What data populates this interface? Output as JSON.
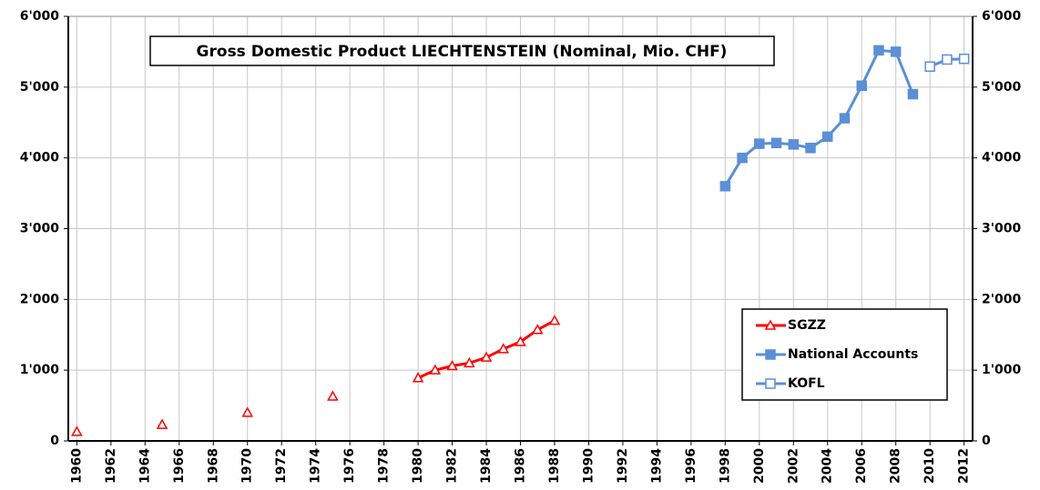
{
  "chart_data": {
    "type": "line",
    "title": "Gross Domestic Product LIECHTENSTEIN (Nominal, Mio. CHF)",
    "x": [
      1960,
      1961,
      1962,
      1963,
      1964,
      1965,
      1966,
      1967,
      1968,
      1969,
      1970,
      1971,
      1972,
      1973,
      1974,
      1975,
      1976,
      1977,
      1978,
      1979,
      1980,
      1981,
      1982,
      1983,
      1984,
      1985,
      1986,
      1987,
      1988,
      1989,
      1990,
      1991,
      1992,
      1993,
      1994,
      1995,
      1996,
      1997,
      1998,
      1999,
      2000,
      2001,
      2002,
      2003,
      2004,
      2005,
      2006,
      2007,
      2008,
      2009,
      2010,
      2011,
      2012
    ],
    "xlim": [
      1959.5,
      2012.5
    ],
    "xticks": [
      1960,
      1962,
      1964,
      1966,
      1968,
      1970,
      1972,
      1974,
      1976,
      1978,
      1980,
      1982,
      1984,
      1986,
      1988,
      1990,
      1992,
      1994,
      1996,
      1998,
      2000,
      2002,
      2004,
      2006,
      2008,
      2010,
      2012
    ],
    "ylim": [
      0,
      6000
    ],
    "yticks": [
      0,
      {
        "value": 1000,
        "label": "1'000"
      },
      {
        "value": 2000,
        "label": "2'000"
      },
      {
        "value": 3000,
        "label": "3'000"
      },
      {
        "value": 4000,
        "label": "4'000"
      },
      {
        "value": 5000,
        "label": "5'000"
      },
      {
        "value": 6000,
        "label": "6'000"
      }
    ],
    "grid": true,
    "legend": "lower right",
    "series": [
      {
        "name": "SGZZ",
        "color": "#ff0000",
        "marker": "open-triangle",
        "values": [
          130,
          null,
          null,
          null,
          null,
          230,
          null,
          null,
          null,
          null,
          400,
          null,
          null,
          null,
          null,
          630,
          null,
          null,
          null,
          null,
          890,
          1000,
          1060,
          1100,
          1180,
          1300,
          1400,
          1570,
          1700,
          null,
          null,
          null,
          null,
          null,
          null,
          null,
          null,
          null,
          null,
          null,
          null,
          null,
          null,
          null,
          null,
          null,
          null,
          null,
          null,
          null,
          null,
          null,
          null
        ]
      },
      {
        "name": "National Accounts",
        "color": "#5b8fd6",
        "marker": "filled-square",
        "values": [
          null,
          null,
          null,
          null,
          null,
          null,
          null,
          null,
          null,
          null,
          null,
          null,
          null,
          null,
          null,
          null,
          null,
          null,
          null,
          null,
          null,
          null,
          null,
          null,
          null,
          null,
          null,
          null,
          null,
          null,
          null,
          null,
          null,
          null,
          null,
          null,
          null,
          null,
          3600,
          4000,
          4200,
          4210,
          4190,
          4140,
          4300,
          4560,
          5020,
          5520,
          5500,
          4900,
          null,
          null,
          null
        ]
      },
      {
        "name": "KOFL",
        "color": "#5b8fd6",
        "marker": "open-square",
        "values": [
          null,
          null,
          null,
          null,
          null,
          null,
          null,
          null,
          null,
          null,
          null,
          null,
          null,
          null,
          null,
          null,
          null,
          null,
          null,
          null,
          null,
          null,
          null,
          null,
          null,
          null,
          null,
          null,
          null,
          null,
          null,
          null,
          null,
          null,
          null,
          null,
          null,
          null,
          null,
          null,
          null,
          null,
          null,
          null,
          null,
          null,
          null,
          null,
          null,
          null,
          5290,
          5390,
          5400
        ]
      }
    ]
  }
}
